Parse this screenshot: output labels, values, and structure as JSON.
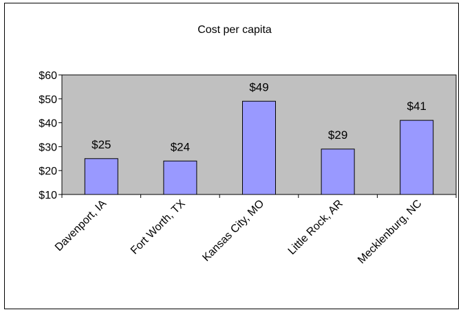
{
  "chart_data": {
    "type": "bar",
    "title": "Cost per capita",
    "categories": [
      "Davenport, IA",
      "Fort Worth, TX",
      "Kansas City, MO",
      "Little Rock, AR",
      "Mecklenburg, NC"
    ],
    "values": [
      25,
      24,
      49,
      29,
      41
    ],
    "data_labels": [
      "$25",
      "$24",
      "$49",
      "$29",
      "$41"
    ],
    "ylim": [
      10,
      60
    ],
    "yticks": [
      10,
      20,
      30,
      40,
      50,
      60
    ],
    "ytick_labels": [
      "$10",
      "$20",
      "$30",
      "$40",
      "$50",
      "$60"
    ],
    "xlabel": "",
    "ylabel": "",
    "grid": false,
    "legend": "none",
    "colors": {
      "bar_fill": "#9999ff",
      "plot_background": "#c0c0c0",
      "bar_border": "#000000"
    }
  }
}
